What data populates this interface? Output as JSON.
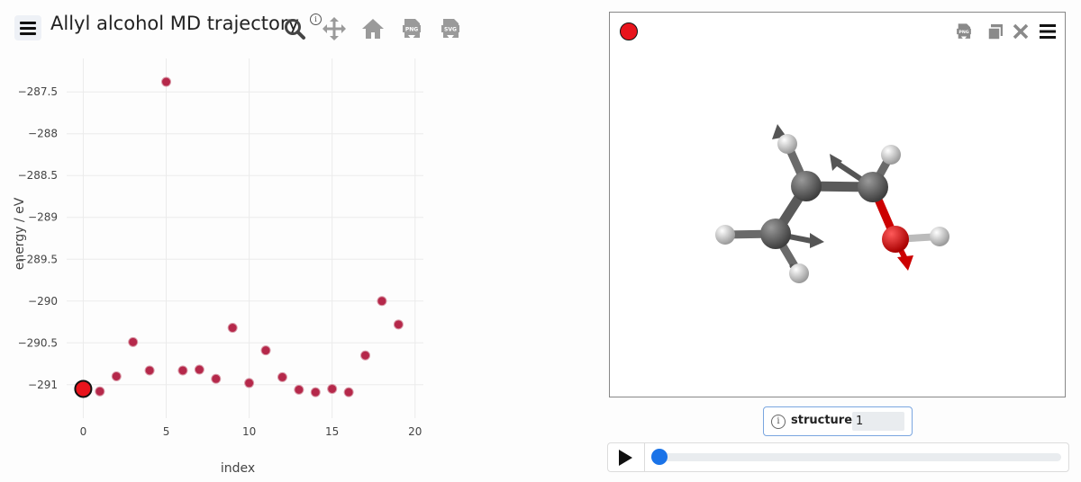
{
  "header": {
    "title": "Allyl alcohol MD trajectory.",
    "info_glyph": "i"
  },
  "toolbar": {
    "tools": [
      "zoom-icon",
      "pan-icon",
      "home-icon",
      "download-png-icon",
      "download-svg-icon"
    ]
  },
  "chart_data": {
    "type": "scatter",
    "xlabel": "index",
    "ylabel": "energy / eV",
    "xlim": [
      -1,
      20.5
    ],
    "ylim": [
      -291.4,
      -287.1
    ],
    "xticks": [
      0,
      5,
      10,
      15,
      20
    ],
    "yticks": [
      -287.5,
      -288,
      -288.5,
      -289,
      -289.5,
      -290,
      -290.5,
      -291
    ],
    "grid": true,
    "x": [
      0,
      1,
      2,
      3,
      4,
      5,
      6,
      7,
      8,
      9,
      10,
      11,
      12,
      13,
      14,
      15,
      16,
      17,
      18,
      19
    ],
    "y": [
      -291.05,
      -291.08,
      -290.9,
      -290.49,
      -290.83,
      -287.38,
      -290.83,
      -290.82,
      -290.93,
      -290.32,
      -290.98,
      -290.59,
      -290.91,
      -291.06,
      -291.09,
      -291.05,
      -291.09,
      -290.65,
      -290.0,
      -290.28
    ],
    "point_color": "#b5284a",
    "selected_index": 0,
    "selected_color": "#e8141c"
  },
  "viewer": {
    "selection_color": "#e8141c",
    "tools": [
      "download-png-icon",
      "copy-icon",
      "close-icon",
      "menu-icon"
    ]
  },
  "structure": {
    "info_glyph": "i",
    "label": "structure",
    "value": "1"
  },
  "player": {
    "progress": 0.0
  }
}
